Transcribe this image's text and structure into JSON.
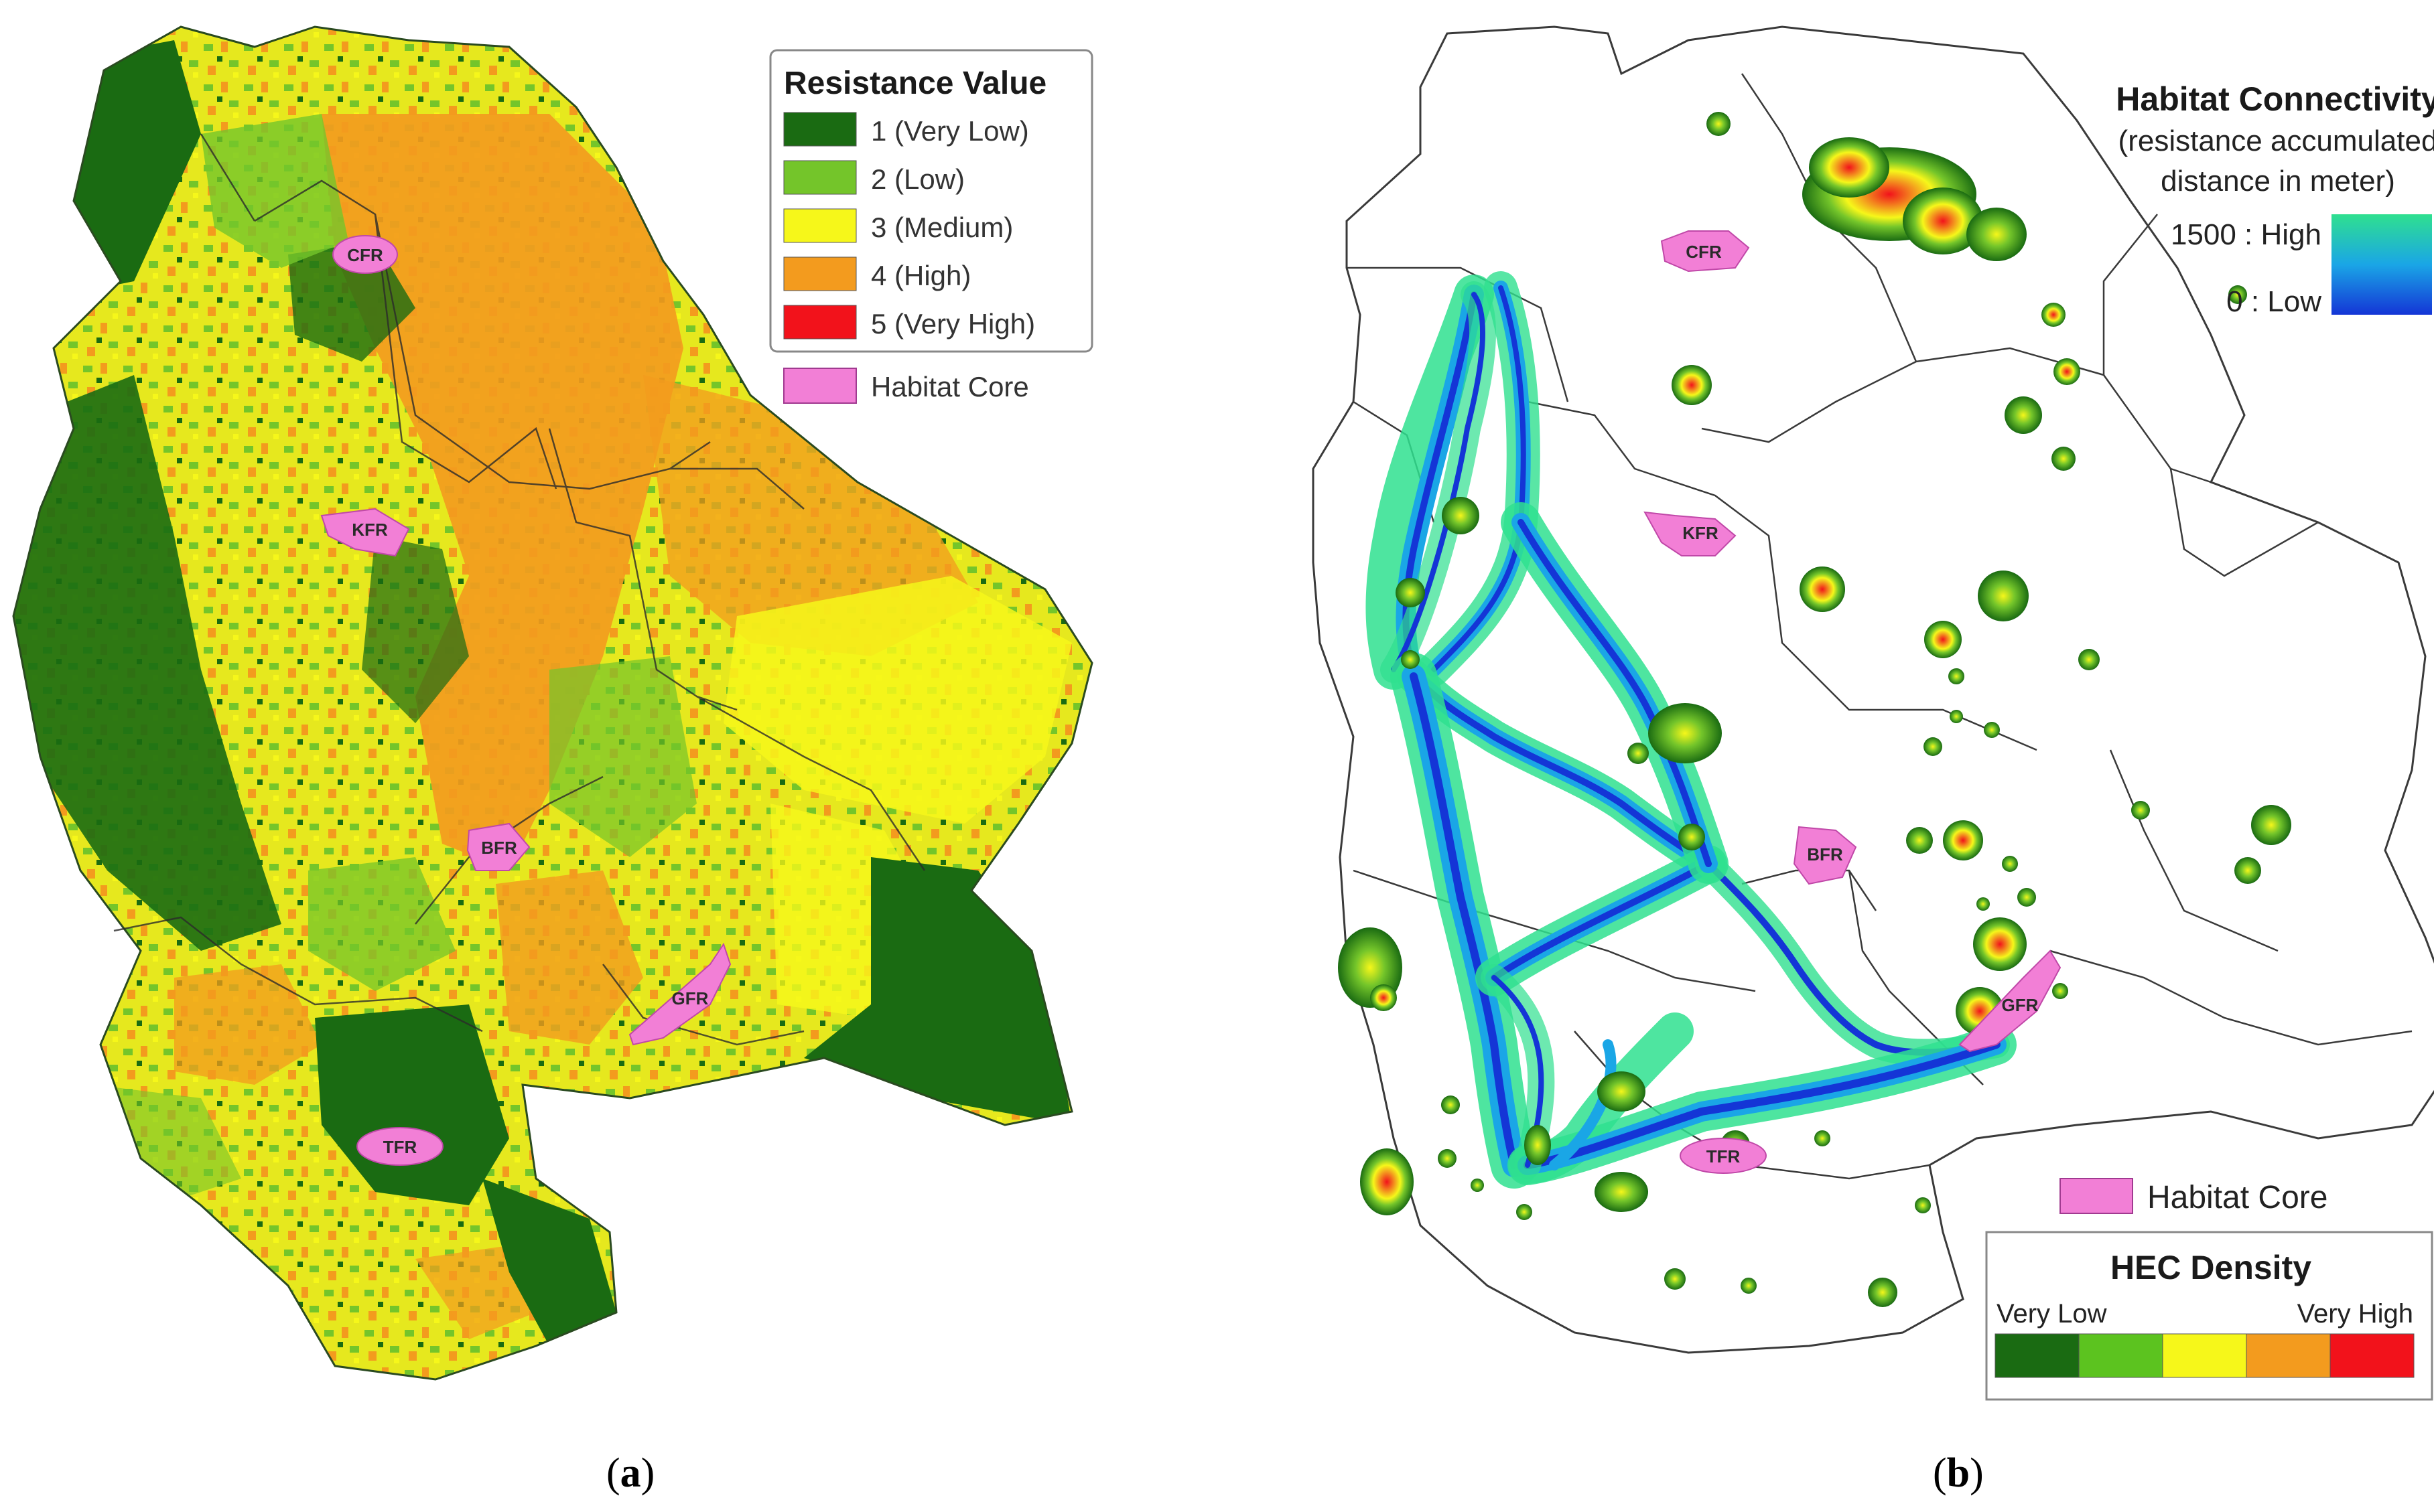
{
  "panel_a": {
    "caption_letter": "a",
    "legend": {
      "title": "Resistance Value",
      "items": [
        {
          "label": "1 (Very Low)",
          "color": "#1a6b12"
        },
        {
          "label": "2 (Low)",
          "color": "#74c52a"
        },
        {
          "label": "3 (Medium)",
          "color": "#f6f71a"
        },
        {
          "label": "4 (High)",
          "color": "#f39b1e"
        },
        {
          "label": "5 (Very High)",
          "color": "#f2121b"
        }
      ],
      "core_label": "Habitat Core",
      "core_color": "#f27fd6"
    },
    "cores": [
      "CFR",
      "KFR",
      "BFR",
      "GFR",
      "TFR"
    ]
  },
  "panel_b": {
    "caption_letter": "b",
    "connectivity_legend": {
      "title": "Habitat Connectivity",
      "subtitle_line1": "(resistance accumulated",
      "subtitle_line2": "distance in meter)",
      "high_label": "1500 : High",
      "low_label": "0 : Low",
      "gradient_colors": [
        "#2fe08f",
        "#1aa6e6",
        "#1435d6"
      ]
    },
    "core_label": "Habitat Core",
    "core_color": "#f27fd6",
    "hec_legend": {
      "title": "HEC Density",
      "low_label": "Very Low",
      "high_label": "Very High",
      "colors": [
        "#1a6b12",
        "#5cc31f",
        "#f6f71a",
        "#f39b1e",
        "#f2121b"
      ]
    },
    "cores": [
      "CFR",
      "KFR",
      "BFR",
      "GFR",
      "TFR"
    ]
  }
}
